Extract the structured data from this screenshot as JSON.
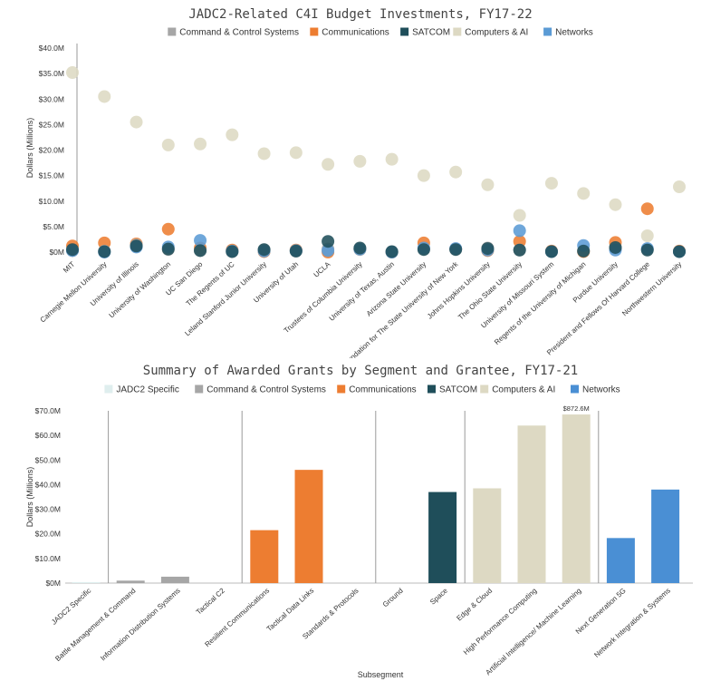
{
  "chart_data": [
    {
      "type": "scatter",
      "title": "JADC2-Related C4I Budget Investments, FY17-22",
      "ylabel": "Dollars (Millions)",
      "xlabel": "",
      "ylim": [
        0,
        40
      ],
      "yticks": [
        0,
        5,
        10,
        15,
        20,
        25,
        30,
        35,
        40
      ],
      "ytick_labels": [
        "$0M",
        "$5.0M",
        "$10.0M",
        "$15.0M",
        "$20.0M",
        "$25.0M",
        "$30.0M",
        "$35.0M",
        "$40.0M"
      ],
      "legend": [
        "Command & Control Systems",
        "Communications",
        "SATCOM",
        "Computers & AI",
        "Networks"
      ],
      "colors": {
        "Command & Control Systems": "#a6a6a6",
        "Communications": "#ed7d31",
        "SATCOM": "#1f4e5a",
        "Computers & AI": "#ddd9c3",
        "Networks": "#5b9bd5"
      },
      "categories": [
        "MIT",
        "Carnegie Mellon University",
        "University of Illinois",
        "University of Washington",
        "UC San Diego",
        "The Regents of UC",
        "Leland Stanford Junior University",
        "University of Utah",
        "UCLA",
        "Trustees of Columbia University",
        "University of Texas, Austin",
        "Arizona State University",
        "Research Foundation for The State University of New York",
        "Johns Hopkins University",
        "The Ohio State University",
        "University of Missouri System",
        "Regents of the University of Michigan",
        "Purdue University",
        "President and Fellows Of Harvard College",
        "Northwestern University"
      ],
      "series": [
        {
          "name": "Computers & AI",
          "values": [
            35.2,
            30.5,
            25.5,
            21.0,
            21.2,
            23.0,
            19.3,
            19.5,
            17.2,
            17.8,
            18.2,
            15.0,
            15.7,
            13.2,
            7.2,
            13.5,
            11.5,
            9.3,
            3.2,
            12.8
          ]
        },
        {
          "name": "Communications",
          "values": [
            1.2,
            1.8,
            1.6,
            4.5,
            0.8,
            0.4,
            0.1,
            0.4,
            0.0,
            0.6,
            0.0,
            1.8,
            0.6,
            0.3,
            2.1,
            0.2,
            0.1,
            1.9,
            8.5,
            0.2
          ]
        },
        {
          "name": "Command & Control Systems",
          "values": [
            0.3,
            0.2,
            1.4,
            0.5,
            0.3,
            0.1,
            0.4,
            0.2,
            0.6,
            0.5,
            0.0,
            0.6,
            0.6,
            0.8,
            0.4,
            0.1,
            0.3,
            0.8,
            0.5,
            0.1
          ]
        },
        {
          "name": "Networks",
          "values": [
            0.3,
            0.0,
            1.0,
            1.0,
            2.3,
            0.2,
            0.2,
            0.3,
            0.3,
            0.6,
            0.0,
            0.8,
            0.7,
            0.4,
            4.2,
            0.1,
            1.3,
            0.4,
            0.7,
            0.1
          ]
        },
        {
          "name": "SATCOM",
          "values": [
            0.5,
            0.1,
            1.2,
            0.6,
            0.3,
            0.1,
            0.5,
            0.2,
            2.1,
            0.8,
            0.1,
            0.5,
            0.5,
            0.7,
            0.4,
            0.1,
            0.2,
            0.9,
            0.4,
            0.1
          ]
        }
      ]
    },
    {
      "type": "bar",
      "title": "Summary of Awarded Grants by Segment and Grantee, FY17-21",
      "ylabel": "Dollars (Millions)",
      "xlabel": "Subsegment",
      "ylim": [
        0,
        70
      ],
      "yticks": [
        0,
        10,
        20,
        30,
        40,
        50,
        60,
        70
      ],
      "ytick_labels": [
        "$0M",
        "$10.0M",
        "$20.0M",
        "$30.0M",
        "$40.0M",
        "$50.0M",
        "$60.0M",
        "$70.0M"
      ],
      "legend": [
        "JADC2 Specific",
        "Command & Control Systems",
        "Communications",
        "SATCOM",
        "Computers & AI",
        "Networks"
      ],
      "colors": {
        "JADC2 Specific": "#dfeeee",
        "Command & Control Systems": "#a6a6a6",
        "Communications": "#ed7d31",
        "SATCOM": "#1f4e5a",
        "Computers & AI": "#ddd9c3",
        "Networks": "#4a8fd4"
      },
      "categories": [
        "JADC2 Specific",
        "Battle Management & Command",
        "Information Distribution Systems",
        "Tactical C2",
        "Resilient Communications",
        "Tactical Data Links",
        "Standards & Protocols",
        "Ground",
        "Space",
        "Edge & Cloud",
        "High Performance Computing",
        "Artificial Intelligence/ Machine Learning",
        "Next Generation 5G",
        "Network Integration & Systems"
      ],
      "segments": [
        "JADC2 Specific",
        "Command & Control Systems",
        "Command & Control Systems",
        "Command & Control Systems",
        "Communications",
        "Communications",
        "Communications",
        "SATCOM",
        "SATCOM",
        "Computers & AI",
        "Computers & AI",
        "Computers & AI",
        "Networks",
        "Networks"
      ],
      "values": [
        0.4,
        1.0,
        2.6,
        0.0,
        21.5,
        46.0,
        0.0,
        0.0,
        37.0,
        38.5,
        64.0,
        68.5,
        18.3,
        38.0
      ],
      "annotations": [
        {
          "category_index": 11,
          "text": "$872.6M"
        }
      ]
    }
  ]
}
